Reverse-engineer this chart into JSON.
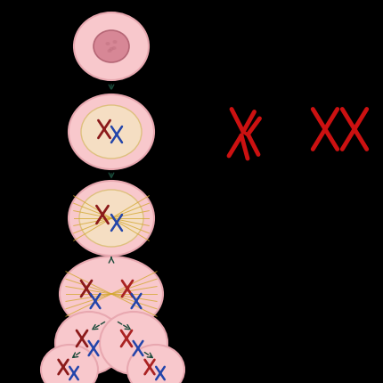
{
  "background_color": "#000000",
  "cell_color": "#f8c8cc",
  "cell_edge_color": "#e8a8b0",
  "nucleus_color_fill": "#d48090",
  "nucleus_color_edge": "#b06070",
  "nuclear_env_fill": "#f5e8c0",
  "nuclear_env_edge": "#d4b860",
  "spindle_color": "#d4a830",
  "chr_red": "#8b1a1a",
  "chr_blue": "#2244aa",
  "chr_dark_red": "#aa2222",
  "arrow_color": "#1a4a3a",
  "big_chr_color": "#cc1111",
  "fig_width": 4.3,
  "fig_height": 4.3,
  "dpi": 100
}
